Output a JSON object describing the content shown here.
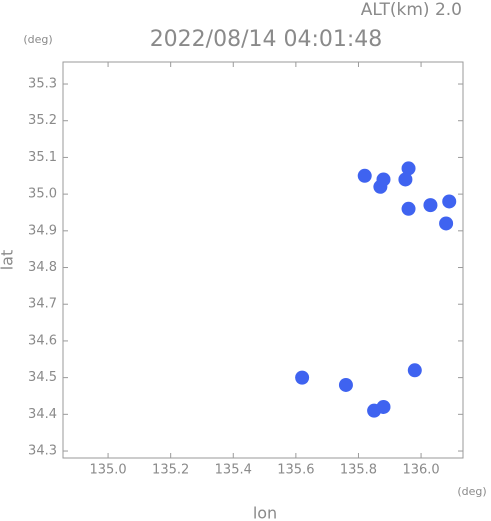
{
  "chart_data": {
    "type": "scatter",
    "title": "2022/08/14 04:01:48",
    "subtitle": "ALT(km) 2.0",
    "x_label": "lon",
    "y_label": "lat",
    "x_unit": "(deg)",
    "y_unit": "(deg)",
    "x": [
      135.82,
      135.87,
      135.88,
      135.95,
      135.96,
      135.96,
      136.03,
      136.09,
      136.08,
      135.62,
      135.76,
      135.98,
      135.85,
      135.88
    ],
    "y": [
      35.05,
      35.02,
      35.04,
      35.04,
      35.07,
      34.96,
      34.97,
      34.98,
      34.92,
      34.5,
      34.48,
      34.52,
      34.41,
      34.42
    ],
    "color": "#3f63f0",
    "xlim": [
      134.856,
      136.134
    ],
    "ylim": [
      34.281,
      35.36
    ],
    "xticks": [
      {
        "value": 135,
        "label": "135.0"
      },
      135.2,
      135.4,
      135.6,
      135.8,
      {
        "value": 136,
        "label": "136.0"
      }
    ],
    "yticks": [
      34.3,
      34.4,
      34.5,
      34.6,
      34.7,
      34.8,
      34.9,
      {
        "value": 35,
        "label": "35.0"
      },
      35.1,
      35.2,
      35.3
    ]
  }
}
